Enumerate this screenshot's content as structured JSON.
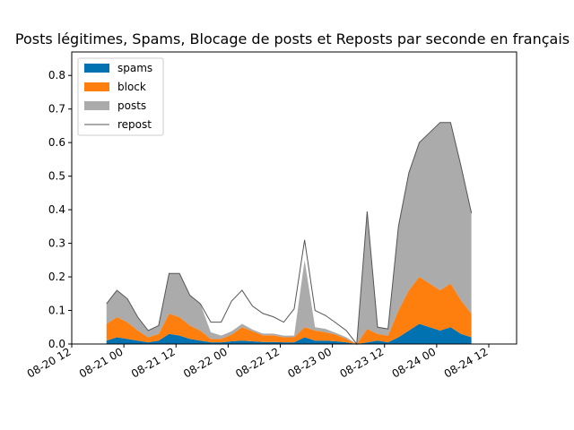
{
  "chart_data": {
    "type": "area",
    "title": "Posts légitimes, Spams, Blocage de posts et Reposts par seconde en français",
    "xlabel": "",
    "ylabel": "",
    "x_ticks": [
      "08-20 12",
      "08-21 00",
      "08-21 12",
      "08-22 00",
      "08-22 12",
      "08-23 00",
      "08-23 12",
      "08-24 00",
      "08-24 12"
    ],
    "y_ticks": [
      "0.0",
      "0.1",
      "0.2",
      "0.3",
      "0.4",
      "0.5",
      "0.6",
      "0.7",
      "0.8"
    ],
    "xlim": [
      "2024-08-20 12:00",
      "2024-08-24 20:00"
    ],
    "ylim": [
      0,
      0.87
    ],
    "x_hours": [
      10,
      13,
      16,
      19,
      22,
      25,
      28,
      31,
      34,
      37,
      40,
      43,
      46,
      49,
      52,
      55,
      58,
      61,
      64,
      67,
      70,
      73,
      76,
      79,
      82,
      85,
      88,
      91,
      94,
      97,
      100,
      103,
      106,
      109,
      112,
      115
    ],
    "series": [
      {
        "name": "spams",
        "color": "#0072B2",
        "values": [
          0.01,
          0.02,
          0.015,
          0.01,
          0.005,
          0.01,
          0.03,
          0.025,
          0.015,
          0.01,
          0.005,
          0.005,
          0.008,
          0.01,
          0.008,
          0.006,
          0.006,
          0.005,
          0.005,
          0.02,
          0.01,
          0.01,
          0.008,
          0.005,
          0.0,
          0.005,
          0.01,
          0.005,
          0.02,
          0.04,
          0.06,
          0.05,
          0.04,
          0.05,
          0.03,
          0.02
        ]
      },
      {
        "name": "block",
        "color": "#FF7F0E",
        "values": [
          0.05,
          0.06,
          0.05,
          0.03,
          0.015,
          0.02,
          0.06,
          0.055,
          0.04,
          0.03,
          0.01,
          0.01,
          0.02,
          0.04,
          0.03,
          0.02,
          0.02,
          0.015,
          0.015,
          0.03,
          0.03,
          0.025,
          0.02,
          0.01,
          0.0,
          0.04,
          0.02,
          0.02,
          0.08,
          0.12,
          0.14,
          0.13,
          0.12,
          0.13,
          0.1,
          0.07
        ]
      },
      {
        "name": "posts",
        "color": "#ABABAB",
        "values": [
          0.06,
          0.08,
          0.07,
          0.04,
          0.02,
          0.025,
          0.12,
          0.13,
          0.09,
          0.08,
          0.02,
          0.01,
          0.01,
          0.01,
          0.005,
          0.005,
          0.005,
          0.005,
          0.005,
          0.2,
          0.01,
          0.01,
          0.005,
          0.005,
          0.0,
          0.35,
          0.02,
          0.02,
          0.25,
          0.35,
          0.4,
          0.45,
          0.5,
          0.48,
          0.4,
          0.3
        ]
      },
      {
        "name": "repost",
        "color": "#555555",
        "values": [
          0.0,
          0.0,
          0.0,
          0.0,
          0.0,
          0.0,
          0.0,
          0.0,
          0.0,
          0.0,
          0.03,
          0.04,
          0.09,
          0.1,
          0.07,
          0.06,
          0.05,
          0.04,
          0.08,
          0.06,
          0.05,
          0.04,
          0.03,
          0.02,
          0.0,
          0.0,
          0.0,
          0.0,
          0.0,
          0.0,
          0.0,
          0.0,
          0.0,
          0.0,
          0.0,
          0.0
        ]
      }
    ],
    "legend": {
      "placement": "upper-left",
      "entries": [
        "spams",
        "block",
        "posts",
        "repost"
      ]
    },
    "grid": false
  }
}
